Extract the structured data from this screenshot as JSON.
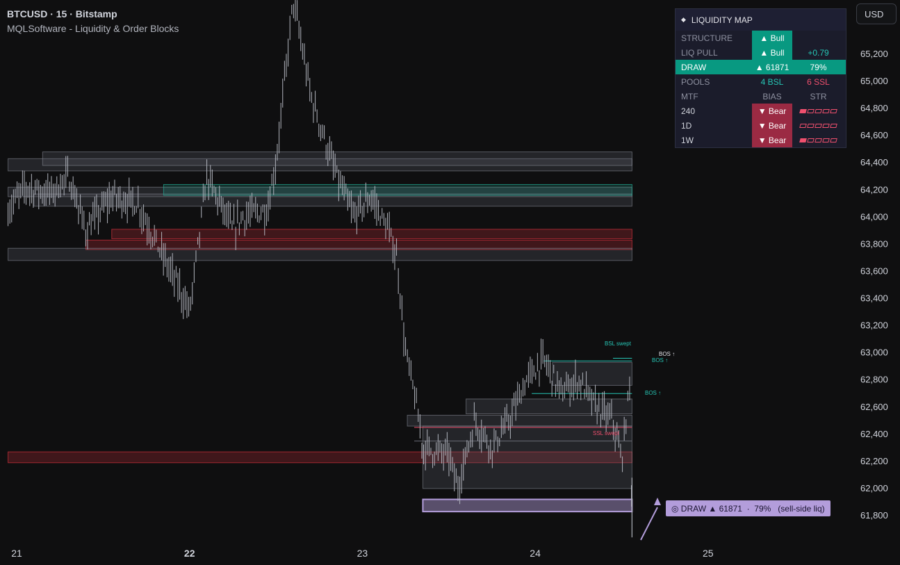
{
  "header": {
    "symbol_line": "BTCUSD · 15 · Bitstamp",
    "indicator_line": "MQLSoftware - Liquidity & Order Blocks"
  },
  "currency_button": "USD",
  "panel": {
    "title": "LIQUIDITY MAP",
    "rows": [
      {
        "label": "STRUCTURE",
        "c2": "▲ Bull",
        "c3": ""
      },
      {
        "label": "LIQ PULL",
        "c2": "▲ Bull",
        "c3": "+0.79"
      },
      {
        "label": "DRAW",
        "c2": "▲ 61871",
        "c3": "79%"
      },
      {
        "label": "POOLS",
        "c2": "4 BSL",
        "c3": "6 SSL"
      },
      {
        "label": "MTF",
        "c2": "BIAS",
        "c3": "STR"
      },
      {
        "label": "240",
        "c2": "▼ Bear",
        "strength": 1
      },
      {
        "label": "1D",
        "c2": "▼ Bear",
        "strength": 0
      },
      {
        "label": "1W",
        "c2": "▼ Bear",
        "strength": 1
      }
    ]
  },
  "draw_label": "◎ DRAW ▲ 61871  ·  79%   (sell-side liq)",
  "annotations": {
    "bsl_swept": "BSL swept",
    "bos1": "BOS ↑",
    "bos2": "BOS ↑",
    "bos3": "BOS ↑",
    "ssl_swept": "SSL swept"
  },
  "colors": {
    "background": "#0f0f10",
    "candle": "#b2b5be",
    "bull": "#089981",
    "bear": "#9b2a43",
    "draw": "#b39ddb",
    "zone_gray": "#5d606b",
    "zone_red": "#f23645",
    "zone_teal": "#22ab94"
  },
  "chart_data": {
    "type": "candlestick",
    "symbol": "BTCUSD",
    "interval": "15",
    "ylim": [
      61620,
      65980
    ],
    "y_ticks": [
      61800,
      62000,
      62200,
      62400,
      62600,
      62800,
      63000,
      63200,
      63400,
      63600,
      63800,
      64000,
      64200,
      64400,
      64600,
      64800,
      65000,
      65200
    ],
    "y_tick_labels": [
      "61,800",
      "62,000",
      "62,200",
      "62,400",
      "62,600",
      "62,800",
      "63,000",
      "63,200",
      "63,400",
      "63,600",
      "63,800",
      "64,000",
      "64,200",
      "64,400",
      "64,600",
      "64,800",
      "65,000",
      "65,200"
    ],
    "x_labels": [
      "21",
      "22",
      "23",
      "24",
      "25"
    ],
    "x_label_days": [
      21,
      22,
      23,
      24,
      25
    ],
    "price_path": [
      [
        20.95,
        64050
      ],
      [
        21.05,
        64220
      ],
      [
        21.2,
        64180
      ],
      [
        21.3,
        64300
      ],
      [
        21.4,
        63900
      ],
      [
        21.55,
        64150
      ],
      [
        21.7,
        64100
      ],
      [
        21.85,
        63700
      ],
      [
        21.95,
        63450
      ],
      [
        22.0,
        63300
      ],
      [
        22.1,
        64300
      ],
      [
        22.25,
        63900
      ],
      [
        22.3,
        64000
      ],
      [
        22.45,
        64050
      ],
      [
        22.5,
        64400
      ],
      [
        22.55,
        65000
      ],
      [
        22.6,
        65600
      ],
      [
        22.7,
        64900
      ],
      [
        22.85,
        64300
      ],
      [
        22.95,
        64000
      ],
      [
        23.05,
        64150
      ],
      [
        23.15,
        63900
      ],
      [
        23.2,
        63700
      ],
      [
        23.25,
        63000
      ],
      [
        23.3,
        62700
      ],
      [
        23.35,
        62300
      ],
      [
        23.5,
        62250
      ],
      [
        23.55,
        62000
      ],
      [
        23.65,
        62500
      ],
      [
        23.75,
        62300
      ],
      [
        23.85,
        62500
      ],
      [
        23.95,
        62800
      ],
      [
        24.05,
        62950
      ],
      [
        24.15,
        62700
      ],
      [
        24.25,
        62800
      ],
      [
        24.35,
        62600
      ],
      [
        24.45,
        62500
      ],
      [
        24.5,
        62200
      ],
      [
        24.55,
        62800
      ],
      [
        24.56,
        61650
      ]
    ],
    "zones": [
      {
        "kind": "gray",
        "from_day": 20.95,
        "to_day": 24.56,
        "low": 64340,
        "high": 64430
      },
      {
        "kind": "gray",
        "from_day": 21.15,
        "to_day": 24.56,
        "low": 64380,
        "high": 64480
      },
      {
        "kind": "gray",
        "from_day": 20.95,
        "to_day": 24.56,
        "low": 64150,
        "high": 64220
      },
      {
        "kind": "gray",
        "from_day": 21.1,
        "to_day": 24.56,
        "low": 64080,
        "high": 64170
      },
      {
        "kind": "teal",
        "from_day": 21.85,
        "to_day": 24.56,
        "low": 64160,
        "high": 64240
      },
      {
        "kind": "red",
        "from_day": 21.55,
        "to_day": 24.56,
        "low": 63840,
        "high": 63910
      },
      {
        "kind": "red",
        "from_day": 21.4,
        "to_day": 24.56,
        "low": 63760,
        "high": 63830
      },
      {
        "kind": "gray",
        "from_day": 20.95,
        "to_day": 24.56,
        "low": 63680,
        "high": 63770
      },
      {
        "kind": "red",
        "from_day": 20.95,
        "to_day": 24.56,
        "low": 62190,
        "high": 62270
      },
      {
        "kind": "gray",
        "from_day": 23.26,
        "to_day": 24.56,
        "low": 62460,
        "high": 62540
      },
      {
        "kind": "gray",
        "from_day": 23.35,
        "to_day": 24.56,
        "low": 62000,
        "high": 62460
      },
      {
        "kind": "gray",
        "from_day": 23.6,
        "to_day": 24.56,
        "low": 62550,
        "high": 62660
      },
      {
        "kind": "gray",
        "from_day": 24.1,
        "to_day": 24.56,
        "low": 62760,
        "high": 62930
      },
      {
        "kind": "draw",
        "from_day": 23.35,
        "to_day": 24.56,
        "low": 61830,
        "high": 61920
      }
    ],
    "levels": [
      {
        "price": 62960,
        "from_day": 24.45,
        "to_day": 24.56,
        "color": "teal"
      },
      {
        "price": 62940,
        "from_day": 24.05,
        "to_day": 24.56,
        "color": "teal"
      },
      {
        "price": 62700,
        "from_day": 23.98,
        "to_day": 24.56,
        "color": "teal"
      },
      {
        "price": 62450,
        "from_day": 23.3,
        "to_day": 24.56,
        "color": "red"
      },
      {
        "price": 62350,
        "from_day": 23.3,
        "to_day": 24.56,
        "color": "gray"
      }
    ],
    "draw_target": {
      "price": 61871,
      "probability": "79%"
    }
  }
}
